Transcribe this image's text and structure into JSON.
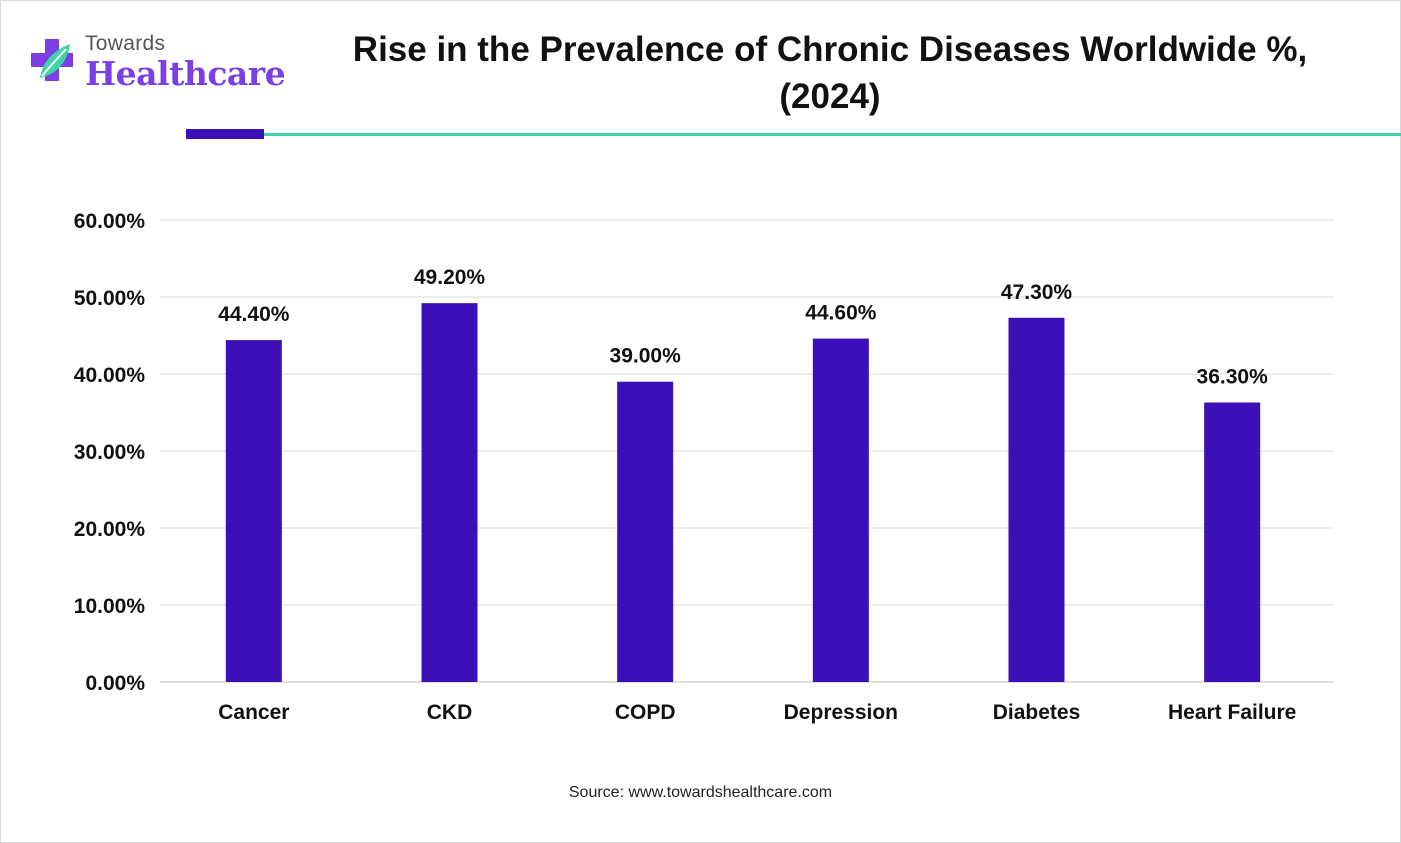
{
  "brand": {
    "line1": "Towards",
    "line2": "Healthcare",
    "primary_color": "#7b3fe4",
    "accent_color": "#3fd4a7"
  },
  "title_line1": "Rise in the Prevalence of Chronic Diseases Worldwide %,",
  "title_line2": "(2024)",
  "source": "Source: www.towardshealthcare.com",
  "chart_data": {
    "type": "bar",
    "title": "Rise in the Prevalence of Chronic Diseases Worldwide %, (2024)",
    "xlabel": "",
    "ylabel": "",
    "categories": [
      "Cancer",
      "CKD",
      "COPD",
      "Depression",
      "Diabetes",
      "Heart Failure"
    ],
    "values": [
      44.4,
      49.2,
      39.0,
      44.6,
      47.3,
      36.3
    ],
    "data_labels": [
      "44.40%",
      "49.20%",
      "39.00%",
      "44.60%",
      "47.30%",
      "36.30%"
    ],
    "yticks": [
      0,
      10,
      20,
      30,
      40,
      50,
      60
    ],
    "ytick_labels": [
      "0.00%",
      "10.00%",
      "20.00%",
      "30.00%",
      "40.00%",
      "50.00%",
      "60.00%"
    ],
    "ylim": [
      0,
      60
    ],
    "grid": true,
    "legend": "none",
    "bar_color": "#3b10b8"
  }
}
